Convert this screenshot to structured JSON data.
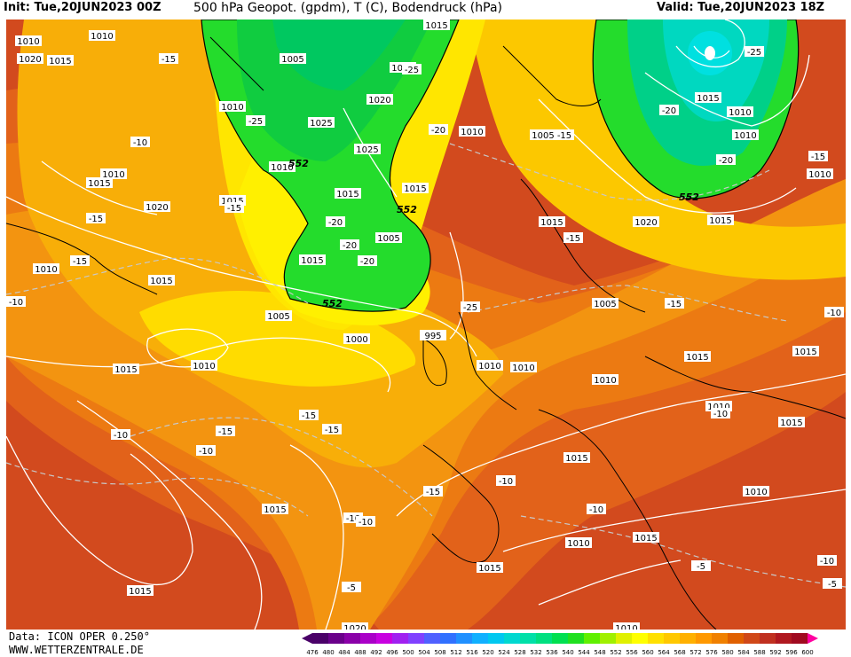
{
  "header": {
    "init": "Init: Tue,20JUN2023 00Z",
    "title": "500 hPa Geopot. (gpdm), T (C), Bodendruck (hPa)",
    "valid": "Valid: Tue,20JUN2023 18Z"
  },
  "footer": {
    "data_source": "Data: ICON OPER 0.250°",
    "website": "WWW.WETTERZENTRALE.DE"
  },
  "colorbar": {
    "ticks": [
      "476",
      "480",
      "484",
      "488",
      "492",
      "496",
      "500",
      "504",
      "508",
      "512",
      "516",
      "520",
      "524",
      "528",
      "532",
      "536",
      "540",
      "544",
      "548",
      "552",
      "556",
      "560",
      "564",
      "568",
      "572",
      "576",
      "580",
      "584",
      "588",
      "592",
      "596",
      "600"
    ],
    "colors": [
      "#4a0068",
      "#6a008a",
      "#8a00a8",
      "#aa00c8",
      "#c800e0",
      "#a020f0",
      "#8040ff",
      "#5060ff",
      "#3070ff",
      "#2090ff",
      "#10b0ff",
      "#00c8f0",
      "#00d8d0",
      "#00e0a8",
      "#00e080",
      "#00e050",
      "#20e020",
      "#60f000",
      "#a0f000",
      "#e0f000",
      "#ffff00",
      "#ffe000",
      "#ffc800",
      "#ffb000",
      "#ff9800",
      "#f08000",
      "#e06000",
      "#d04818",
      "#c03020",
      "#b01820",
      "#a00a20",
      "#ff00a0"
    ]
  },
  "map": {
    "pressure_labels": [
      "1010",
      "1020",
      "1005",
      "1015",
      "1010",
      "1025",
      "1020",
      "1025",
      "1010",
      "1015",
      "1005",
      "1015",
      "1015",
      "1020",
      "1010",
      "1015",
      "1015",
      "1015",
      "1020",
      "1010",
      "1005",
      "1015",
      "1015",
      "1010",
      "1010",
      "1010",
      "1015",
      "1005",
      "995",
      "1000",
      "1005",
      "1010",
      "1015",
      "1010",
      "1010",
      "1015",
      "1015",
      "1010",
      "1015",
      "1015",
      "1010",
      "1015",
      "1010",
      "1015",
      "1015",
      "1020",
      "1010",
      "1015",
      "1010",
      "1015",
      "1010",
      "1015",
      "1010"
    ],
    "temp_labels": [
      "-15",
      "-25",
      "-10",
      "-25",
      "-20",
      "-15",
      "-15",
      "-15",
      "-10",
      "-20",
      "-20",
      "-15",
      "-15",
      "-20",
      "-25",
      "-20",
      "-25",
      "-15",
      "-10",
      "-15",
      "-15",
      "-10",
      "-15",
      "-10",
      "-10",
      "-10",
      "-15",
      "-10",
      "-10",
      "-5",
      "-5",
      "-5",
      "-10",
      "-15",
      "-10",
      "-20"
    ],
    "height_labels": [
      "552",
      "552",
      "552",
      "552"
    ]
  }
}
